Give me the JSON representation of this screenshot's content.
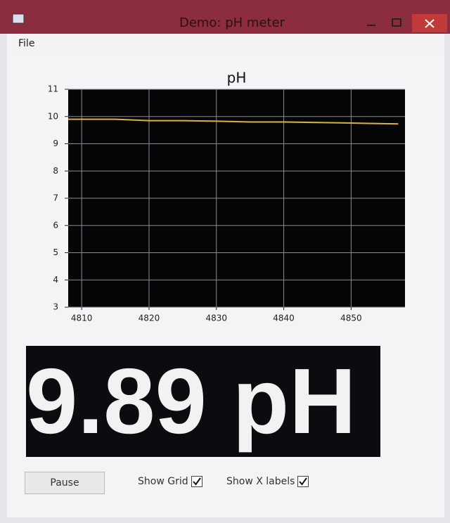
{
  "window": {
    "title": "Demo: pH meter"
  },
  "menu": [
    "File"
  ],
  "chart_data": {
    "type": "line",
    "title": "pH",
    "x": [
      4808,
      4815,
      4820,
      4825,
      4830,
      4835,
      4840,
      4845,
      4850,
      4857
    ],
    "series": [
      {
        "name": "pH",
        "color": "#d8b43a",
        "values": [
          9.9,
          9.9,
          9.85,
          9.85,
          9.83,
          9.8,
          9.8,
          9.78,
          9.76,
          9.73
        ]
      }
    ],
    "xlim": [
      4808,
      4858
    ],
    "xticks": [
      4810,
      4820,
      4830,
      4840,
      4850
    ],
    "ylim": [
      3,
      11
    ],
    "yticks": [
      3,
      4,
      5,
      6,
      7,
      8,
      9,
      10,
      11
    ],
    "grid": true,
    "background": "#050505",
    "grid_color": "#8a8a99"
  },
  "display": "9.89 pH",
  "controls": {
    "pause": "Pause",
    "show_grid": {
      "label": "Show Grid",
      "checked": true
    },
    "show_x_labels": {
      "label": "Show X labels",
      "checked": true
    }
  }
}
